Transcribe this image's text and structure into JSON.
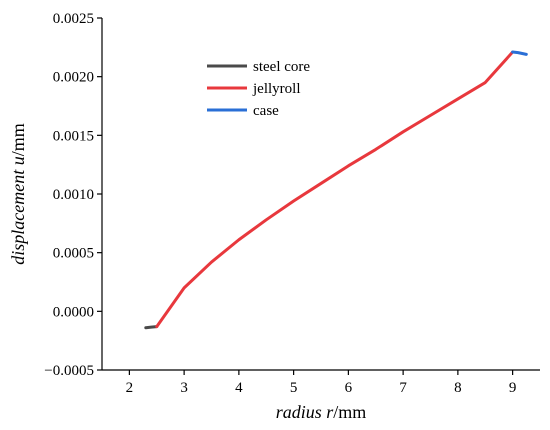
{
  "chart_data": {
    "type": "line",
    "title": "",
    "xlabel": {
      "italic": "radius ",
      "symbol": "r",
      "unit": "/mm"
    },
    "ylabel": {
      "italic": "displacement ",
      "symbol": "u",
      "unit": "/mm"
    },
    "xlim": [
      1.5,
      9.5
    ],
    "ylim": [
      -0.0005,
      0.0025
    ],
    "x_ticks": [
      2,
      3,
      4,
      5,
      6,
      7,
      8,
      9
    ],
    "x_tick_labels": [
      "2",
      "3",
      "4",
      "5",
      "6",
      "7",
      "8",
      "9"
    ],
    "y_ticks": [
      -0.0005,
      0.0,
      0.0005,
      0.001,
      0.0015,
      0.002,
      0.0025
    ],
    "y_tick_labels": [
      "−0.0005",
      "0.0000",
      "0.0005",
      "0.0010",
      "0.0015",
      "0.0020",
      "0.0025"
    ],
    "grid": false,
    "legend_position": "top-left",
    "series": [
      {
        "name": "steel core",
        "color": "#4a4a4a",
        "x": [
          2.3,
          2.4,
          2.5
        ],
        "y": [
          -0.00014,
          -0.000135,
          -0.00013
        ]
      },
      {
        "name": "jellyroll",
        "color": "#e8383d",
        "x": [
          2.5,
          3.0,
          3.5,
          4.0,
          4.5,
          5.0,
          5.5,
          6.0,
          6.5,
          7.0,
          7.5,
          8.0,
          8.5,
          9.0
        ],
        "y": [
          -0.00013,
          0.0002,
          0.00042,
          0.00061,
          0.00078,
          0.00094,
          0.00109,
          0.00124,
          0.00138,
          0.00153,
          0.00167,
          0.00181,
          0.00195,
          0.00221
        ]
      },
      {
        "name": "case",
        "color": "#2a6fd6",
        "x": [
          9.0,
          9.1,
          9.25
        ],
        "y": [
          0.00221,
          0.002205,
          0.00219
        ]
      }
    ]
  }
}
